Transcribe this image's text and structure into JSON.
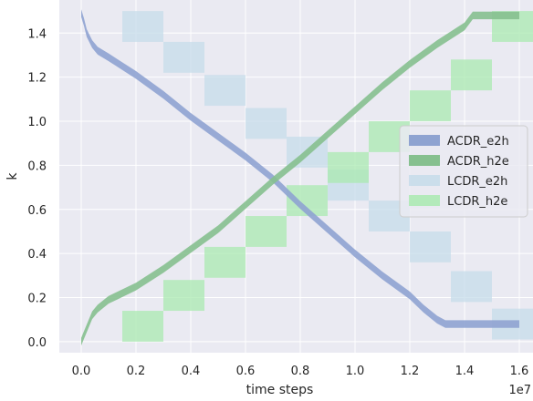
{
  "chart_data": {
    "type": "line",
    "xlabel": "time steps",
    "ylabel": "k",
    "x_offset_label": "1e7",
    "xlim": [
      -0.08,
      1.65
    ],
    "ylim": [
      -0.05,
      1.55
    ],
    "x_ticks": [
      0.0,
      0.2,
      0.4,
      0.6,
      0.8,
      1.0,
      1.2,
      1.4,
      1.6
    ],
    "x_tick_labels": [
      "0.0",
      "0.2",
      "0.4",
      "0.6",
      "0.8",
      "1.0",
      "1.2",
      "1.4",
      "1.6"
    ],
    "y_ticks": [
      0.0,
      0.2,
      0.4,
      0.6,
      0.8,
      1.0,
      1.2,
      1.4
    ],
    "y_tick_labels": [
      "0.0",
      "0.2",
      "0.4",
      "0.6",
      "0.8",
      "1.0",
      "1.2",
      "1.4"
    ],
    "grid": true,
    "background": "#eaeaf2",
    "legend_position": "right",
    "series": [
      {
        "name": "ACDR_e2h",
        "kind": "band",
        "color": "#8fa3d1",
        "band_width": 0.035,
        "x": [
          0.0,
          0.01,
          0.02,
          0.04,
          0.06,
          0.1,
          0.2,
          0.3,
          0.4,
          0.5,
          0.6,
          0.7,
          0.8,
          0.9,
          1.0,
          1.1,
          1.2,
          1.25,
          1.3,
          1.33,
          1.4,
          1.5,
          1.6
        ],
        "y": [
          1.49,
          1.45,
          1.4,
          1.35,
          1.32,
          1.29,
          1.21,
          1.12,
          1.02,
          0.93,
          0.84,
          0.74,
          0.62,
          0.51,
          0.4,
          0.3,
          0.21,
          0.15,
          0.1,
          0.08,
          0.08,
          0.08,
          0.08
        ]
      },
      {
        "name": "ACDR_h2e",
        "kind": "band",
        "color": "#86c08f",
        "band_width": 0.035,
        "x": [
          0.0,
          0.02,
          0.04,
          0.06,
          0.1,
          0.2,
          0.3,
          0.4,
          0.5,
          0.6,
          0.7,
          0.8,
          0.9,
          1.0,
          1.1,
          1.2,
          1.3,
          1.4,
          1.43,
          1.5,
          1.6
        ],
        "y": [
          0.0,
          0.06,
          0.12,
          0.15,
          0.19,
          0.25,
          0.33,
          0.42,
          0.51,
          0.62,
          0.73,
          0.83,
          0.94,
          1.05,
          1.16,
          1.26,
          1.35,
          1.43,
          1.48,
          1.48,
          1.48
        ]
      },
      {
        "name": "LCDR_e2h",
        "kind": "steps",
        "color": "#c5dcea",
        "x_start": [
          0.15,
          0.3,
          0.45,
          0.6,
          0.75,
          0.9,
          1.05,
          1.2,
          1.35,
          1.5
        ],
        "x_end": [
          0.3,
          0.45,
          0.6,
          0.75,
          0.9,
          1.05,
          1.2,
          1.35,
          1.5,
          1.65
        ],
        "y": [
          1.43,
          1.29,
          1.14,
          0.99,
          0.86,
          0.71,
          0.57,
          0.43,
          0.25,
          0.08
        ]
      },
      {
        "name": "LCDR_h2e",
        "kind": "steps",
        "color": "#a9eab0",
        "x_start": [
          0.15,
          0.3,
          0.45,
          0.6,
          0.75,
          0.9,
          1.05,
          1.2,
          1.35,
          1.5
        ],
        "x_end": [
          0.3,
          0.45,
          0.6,
          0.75,
          0.9,
          1.05,
          1.2,
          1.35,
          1.5,
          1.65
        ],
        "y": [
          0.07,
          0.21,
          0.36,
          0.5,
          0.64,
          0.79,
          0.93,
          1.07,
          1.21,
          1.43
        ]
      }
    ]
  }
}
